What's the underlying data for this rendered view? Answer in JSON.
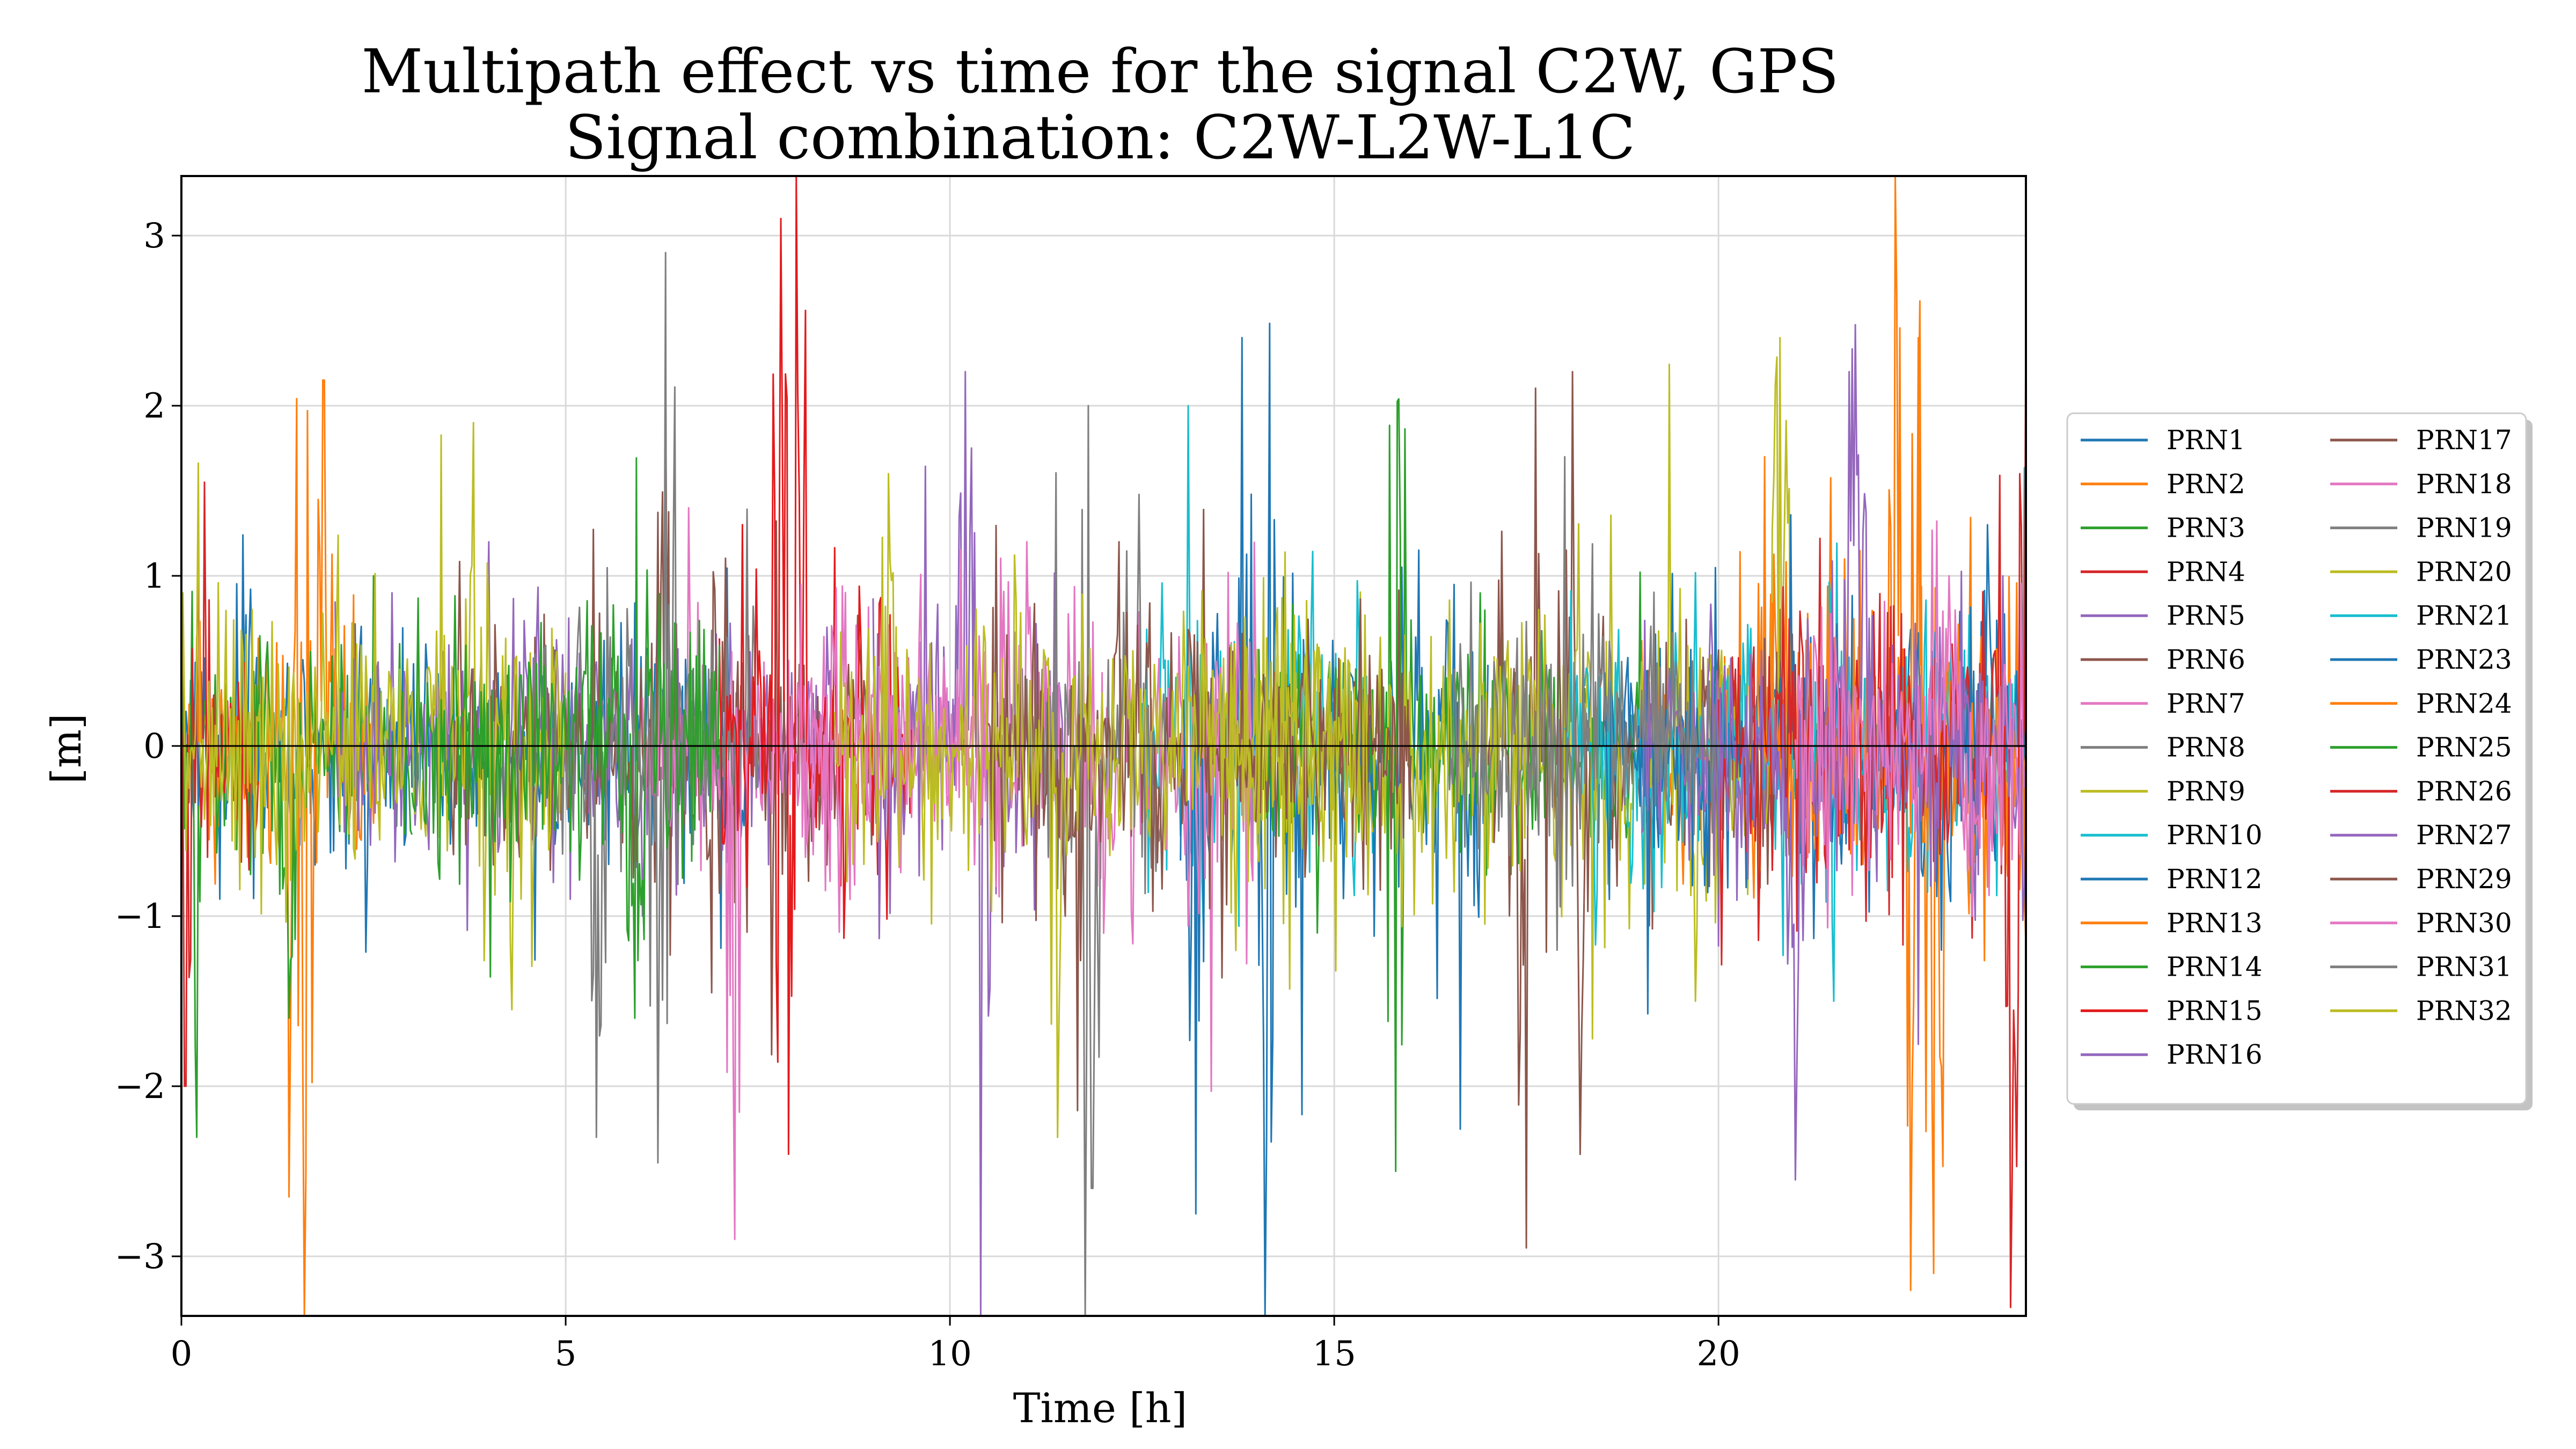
{
  "chart_data": {
    "type": "line",
    "title": "Multipath effect vs time for the signal C2W, GPS",
    "subtitle": "Signal combination: C2W-L2W-L1C",
    "xlabel": "Time [h]",
    "ylabel": "[m]",
    "xlim": [
      0,
      24
    ],
    "ylim": [
      -3.35,
      3.35
    ],
    "x_ticks": [
      0,
      5,
      10,
      15,
      20
    ],
    "x_tick_labels": [
      "0",
      "5",
      "10",
      "15",
      "20"
    ],
    "y_ticks": [
      -3,
      -2,
      -1,
      0,
      1,
      2,
      3
    ],
    "y_tick_labels": [
      "−3",
      "−2",
      "−1",
      "0",
      "1",
      "2",
      "3"
    ],
    "grid": true,
    "zero_line": true,
    "legend_position": "outside-right",
    "legend_columns": 2,
    "series": [
      {
        "name": "PRN1",
        "color": "#1f77b4",
        "start": 0.0,
        "end": 7.5,
        "amp": 0.3,
        "bursts": [
          [
            0.8,
            1.24
          ],
          [
            0.5,
            -0.9
          ]
        ]
      },
      {
        "name": "PRN2",
        "color": "#ff7f0e",
        "start": 0.0,
        "end": 2.6,
        "amp": 0.35,
        "bursts": [
          [
            1.6,
            3.05
          ],
          [
            1.6,
            -3.35
          ],
          [
            1.4,
            -2.65
          ],
          [
            1.85,
            2.15
          ]
        ]
      },
      {
        "name": "PRN3",
        "color": "#2ca02c",
        "start": 0.0,
        "end": 3.0,
        "amp": 0.3,
        "bursts": [
          [
            0.2,
            -2.3
          ],
          [
            1.4,
            -1.6
          ],
          [
            2.5,
            1.0
          ]
        ]
      },
      {
        "name": "PRN4",
        "color": "#d62728",
        "start": 0.0,
        "end": 1.0,
        "amp": 0.35,
        "bursts": [
          [
            0.2,
            1.95
          ],
          [
            0.05,
            -2.0
          ],
          [
            0.3,
            1.55
          ]
        ]
      },
      {
        "name": "PRN5",
        "color": "#9467bd",
        "start": 2.0,
        "end": 8.5,
        "amp": 0.3,
        "bursts": [
          [
            4.0,
            1.2
          ],
          [
            6.0,
            -1.0
          ]
        ]
      },
      {
        "name": "PRN6",
        "color": "#8c564b",
        "start": 3.5,
        "end": 9.0,
        "amp": 0.35,
        "bursts": [
          [
            6.3,
            2.2
          ],
          [
            7.0,
            1.9
          ],
          [
            6.9,
            -1.45
          ]
        ]
      },
      {
        "name": "PRN7",
        "color": "#e377c2",
        "start": 6.0,
        "end": 10.5,
        "amp": 0.3,
        "bursts": [
          [
            7.2,
            -2.9
          ],
          [
            6.6,
            1.4
          ]
        ]
      },
      {
        "name": "PRN8",
        "color": "#7f7f7f",
        "start": 4.5,
        "end": 7.5,
        "amp": 0.35,
        "bursts": [
          [
            6.3,
            2.9
          ],
          [
            6.2,
            -2.45
          ],
          [
            5.4,
            -2.3
          ]
        ]
      },
      {
        "name": "PRN9",
        "color": "#bcbd22",
        "start": 0.0,
        "end": 5.0,
        "amp": 0.4,
        "bursts": [
          [
            3.8,
            1.9
          ],
          [
            4.3,
            -1.55
          ]
        ]
      },
      {
        "name": "PRN10",
        "color": "#17becf",
        "start": 12.5,
        "end": 15.5,
        "amp": 0.4,
        "bursts": [
          [
            13.1,
            2.0
          ],
          [
            13.2,
            -1.6
          ]
        ]
      },
      {
        "name": "PRN12",
        "color": "#1f77b4",
        "start": 13.0,
        "end": 17.0,
        "amp": 0.4,
        "bursts": [
          [
            14.1,
            3.35
          ],
          [
            14.1,
            -3.35
          ],
          [
            13.8,
            2.4
          ],
          [
            13.2,
            -2.75
          ]
        ]
      },
      {
        "name": "PRN13",
        "color": "#ff7f0e",
        "start": 19.0,
        "end": 24.0,
        "amp": 0.4,
        "bursts": [
          [
            22.7,
            3.35
          ],
          [
            22.5,
            -3.2
          ],
          [
            22.8,
            -3.1
          ],
          [
            20.6,
            1.7
          ]
        ]
      },
      {
        "name": "PRN14",
        "color": "#2ca02c",
        "start": 14.0,
        "end": 19.0,
        "amp": 0.35,
        "bursts": [
          [
            15.8,
            2.75
          ],
          [
            15.8,
            -2.5
          ]
        ]
      },
      {
        "name": "PRN15",
        "color": "#e31a1c",
        "start": 7.0,
        "end": 9.5,
        "amp": 0.4,
        "bursts": [
          [
            8.0,
            3.35
          ],
          [
            7.8,
            -3.35
          ],
          [
            7.8,
            3.1
          ],
          [
            7.9,
            -2.4
          ]
        ]
      },
      {
        "name": "PRN16",
        "color": "#9467bd",
        "start": 9.0,
        "end": 11.5,
        "amp": 0.4,
        "bursts": [
          [
            10.5,
            3.35
          ],
          [
            10.4,
            -3.35
          ],
          [
            10.2,
            2.2
          ]
        ]
      },
      {
        "name": "PRN17",
        "color": "#8c564b",
        "start": 17.0,
        "end": 21.0,
        "amp": 0.4,
        "bursts": [
          [
            18.1,
            2.2
          ],
          [
            17.5,
            -2.95
          ],
          [
            18.2,
            -2.4
          ]
        ]
      },
      {
        "name": "PRN18",
        "color": "#e377c2",
        "start": 8.0,
        "end": 14.0,
        "amp": 0.45,
        "bursts": [
          [
            11.0,
            1.2
          ],
          [
            12.0,
            -1.1
          ]
        ]
      },
      {
        "name": "PRN19",
        "color": "#7f7f7f",
        "start": 11.0,
        "end": 12.8,
        "amp": 0.4,
        "bursts": [
          [
            11.8,
            2.95
          ],
          [
            11.75,
            -3.35
          ],
          [
            11.8,
            2.0
          ],
          [
            11.85,
            -2.6
          ]
        ]
      },
      {
        "name": "PRN20",
        "color": "#bcbd22",
        "start": 13.5,
        "end": 21.0,
        "amp": 0.4,
        "bursts": [
          [
            20.8,
            3.05
          ],
          [
            20.8,
            2.4
          ],
          [
            19.7,
            -1.5
          ]
        ]
      },
      {
        "name": "PRN21",
        "color": "#17becf",
        "start": 18.0,
        "end": 24.0,
        "amp": 0.35,
        "bursts": [
          [
            21.5,
            1.5
          ],
          [
            21.5,
            -1.5
          ]
        ]
      },
      {
        "name": "PRN23",
        "color": "#1f77b4",
        "start": 18.5,
        "end": 24.0,
        "amp": 0.4,
        "bursts": [
          [
            23.5,
            1.3
          ],
          [
            22.9,
            -1.2
          ]
        ]
      },
      {
        "name": "PRN24",
        "color": "#ff7f0e",
        "start": 20.5,
        "end": 24.0,
        "amp": 0.4,
        "bursts": [
          [
            22.3,
            3.35
          ],
          [
            22.6,
            2.4
          ]
        ]
      },
      {
        "name": "PRN25",
        "color": "#2ca02c",
        "start": 3.0,
        "end": 7.0,
        "amp": 0.35,
        "bursts": [
          [
            5.9,
            2.9
          ],
          [
            5.9,
            -1.6
          ]
        ]
      },
      {
        "name": "PRN26",
        "color": "#d62728",
        "start": 20.0,
        "end": 24.0,
        "amp": 0.45,
        "bursts": [
          [
            23.9,
            2.8
          ],
          [
            23.85,
            -3.35
          ],
          [
            24.0,
            2.6
          ],
          [
            23.8,
            -3.3
          ]
        ]
      },
      {
        "name": "PRN27",
        "color": "#9467bd",
        "start": 19.0,
        "end": 24.0,
        "amp": 0.4,
        "bursts": [
          [
            21.8,
            3.35
          ],
          [
            21.0,
            -2.55
          ],
          [
            21.7,
            2.2
          ]
        ]
      },
      {
        "name": "PRN29",
        "color": "#8c564b",
        "start": 10.5,
        "end": 16.0,
        "amp": 0.35,
        "bursts": [
          [
            12.2,
            1.2
          ],
          [
            11.5,
            -1.0
          ]
        ]
      },
      {
        "name": "PRN30",
        "color": "#e377c2",
        "start": 21.0,
        "end": 24.0,
        "amp": 0.4,
        "bursts": [
          [
            23.0,
            1.0
          ],
          [
            23.3,
            -1.0
          ]
        ]
      },
      {
        "name": "PRN31",
        "color": "#7f7f7f",
        "start": 16.5,
        "end": 20.0,
        "amp": 0.35,
        "bursts": [
          [
            18.0,
            1.7
          ],
          [
            17.9,
            -1.2
          ]
        ]
      },
      {
        "name": "PRN32",
        "color": "#bcbd22",
        "start": 8.5,
        "end": 15.5,
        "amp": 0.4,
        "bursts": [
          [
            11.4,
            -2.3
          ],
          [
            9.2,
            1.6
          ]
        ]
      }
    ]
  }
}
